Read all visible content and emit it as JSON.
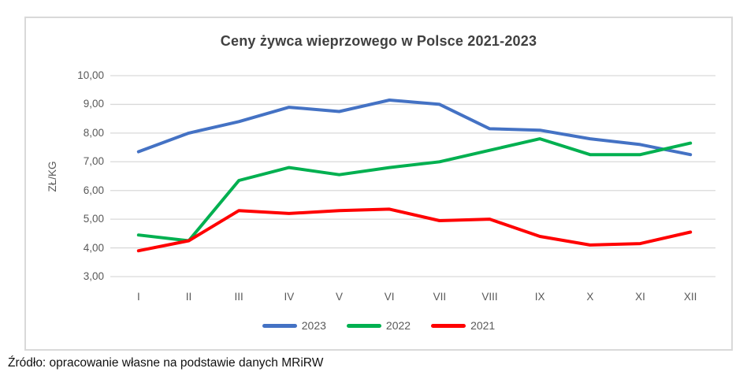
{
  "chart_data": {
    "type": "line",
    "title": "Ceny żywca wieprzowego w Polsce 2021-2023",
    "xlabel": "",
    "ylabel": "ZŁ/KG",
    "categories": [
      "I",
      "II",
      "III",
      "IV",
      "V",
      "VI",
      "VII",
      "VIII",
      "IX",
      "X",
      "XI",
      "XII"
    ],
    "series": [
      {
        "name": "2023",
        "color": "#4472C4",
        "values": [
          7.35,
          8.0,
          8.4,
          8.9,
          8.75,
          9.15,
          9.0,
          8.15,
          8.1,
          7.8,
          7.6,
          7.25
        ]
      },
      {
        "name": "2022",
        "color": "#00B050",
        "values": [
          4.45,
          4.25,
          6.35,
          6.8,
          6.55,
          6.8,
          7.0,
          7.4,
          7.8,
          7.25,
          7.25,
          7.65
        ]
      },
      {
        "name": "2021",
        "color": "#FF0000",
        "values": [
          3.9,
          4.25,
          5.3,
          5.2,
          5.3,
          5.35,
          4.95,
          5.0,
          4.4,
          4.1,
          4.15,
          4.55
        ]
      }
    ],
    "ylim": [
      3,
      10
    ],
    "yticks": [
      10,
      9,
      8,
      7,
      6,
      5,
      4,
      3
    ],
    "ytick_decimal_separator": ",",
    "grid": "horizontal",
    "gridline_color": "#d9d9d9",
    "legend_position": "bottom",
    "line_width": 4
  },
  "source_note": "Źródło: opracowanie własne na podstawie danych MRiRW"
}
